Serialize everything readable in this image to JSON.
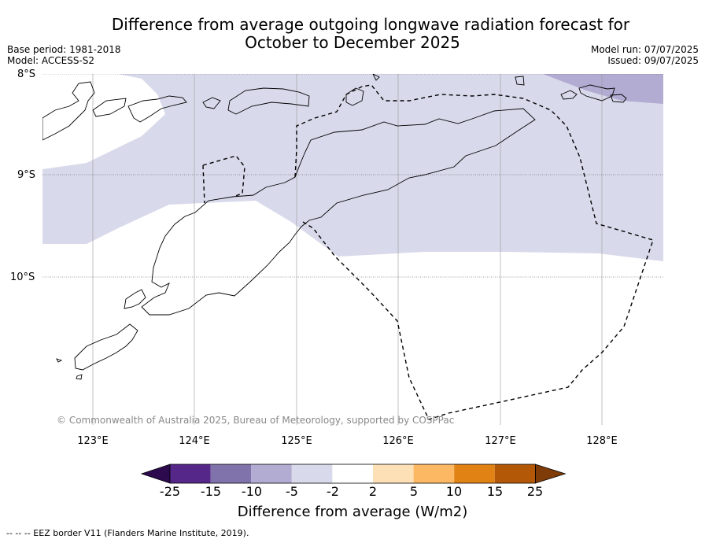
{
  "title": {
    "line1": "Difference from average outgoing longwave radiation forecast for",
    "line2": "October to December 2025"
  },
  "meta_left": {
    "base_period": "Base period: 1981-2018",
    "model": "Model: ACCESS-S2"
  },
  "meta_right": {
    "model_run": "Model run: 07/07/2025",
    "issued": "Issued: 09/07/2025"
  },
  "map": {
    "lat_labels": [
      "8°S",
      "9°S",
      "10°S"
    ],
    "lon_labels": [
      "123°E",
      "124°E",
      "125°E",
      "126°E",
      "127°E",
      "128°E"
    ],
    "copyright": "© Commonwealth of Australia 2025, Bureau of Meteorology, supported by COSPPac",
    "lon_range": [
      122.5,
      128.6
    ],
    "lat_range": [
      -8.0,
      -11.5
    ]
  },
  "colorbar": {
    "labels": [
      "-25",
      "-15",
      "-10",
      "-5",
      "-2",
      "2",
      "5",
      "10",
      "15",
      "25"
    ],
    "colors": [
      "#2d0a4e",
      "#542788",
      "#8073ac",
      "#b2abd2",
      "#d8daeb",
      "#ffffff",
      "#fee0b6",
      "#fdb863",
      "#e08214",
      "#b35806",
      "#7f3b08"
    ],
    "title": "Difference from average (W/m2)"
  },
  "footer": {
    "legend_text": "--  --  -- EEZ border V11 (Flanders Marine Institute, 2019)."
  }
}
